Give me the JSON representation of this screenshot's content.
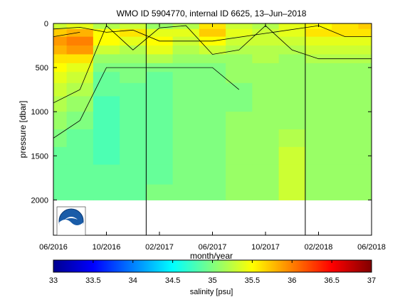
{
  "chart_data": [
    {
      "type": "heatmap",
      "title": "WMO ID 5904770, internal ID 6625, 13–Jun–2018",
      "xlabel": "month/year",
      "ylabel": "pressure [dbar]",
      "x_ticks": [
        "06/2016",
        "10/2016",
        "02/2017",
        "06/2017",
        "10/2017",
        "02/2018",
        "06/2018"
      ],
      "xlim": [
        "2016-06",
        "2018-06"
      ],
      "y_ticks": [
        0,
        500,
        1000,
        1500,
        2000
      ],
      "ylim": [
        0,
        2400
      ],
      "y_reversed": true,
      "contour_lines": true,
      "vertical_markers": [
        "2017-01",
        "2018-01"
      ],
      "x": [
        "2016-06",
        "2016-08",
        "2016-10",
        "2016-12",
        "2017-02",
        "2017-04",
        "2017-06",
        "2017-08",
        "2017-10",
        "2017-12",
        "2018-02",
        "2018-04",
        "2018-06"
      ],
      "y": [
        25,
        100,
        200,
        300,
        400,
        500,
        600,
        750,
        900,
        1100,
        1300,
        1500,
        1700,
        1950
      ],
      "z": [
        [
          35.3,
          35.7,
          35.9,
          35.8,
          35.6,
          35.5,
          35.4,
          35.3,
          35.2,
          35.1,
          35.0,
          34.9,
          34.9,
          34.9
        ],
        [
          35.4,
          35.8,
          36.0,
          35.9,
          35.6,
          35.4,
          35.3,
          35.2,
          35.1,
          35.0,
          34.9,
          34.9,
          34.9,
          34.9
        ],
        [
          35.2,
          35.5,
          35.5,
          35.3,
          35.1,
          35.0,
          34.9,
          34.9,
          34.8,
          34.8,
          34.8,
          34.8,
          34.9,
          34.9
        ],
        [
          35.3,
          35.6,
          35.4,
          35.2,
          35.1,
          35.0,
          35.0,
          34.9,
          34.9,
          34.9,
          34.9,
          34.9,
          34.9,
          34.9
        ],
        [
          35.1,
          35.4,
          35.5,
          35.4,
          35.2,
          35.0,
          34.9,
          34.9,
          34.9,
          34.9,
          34.9,
          34.9,
          34.9,
          35.0
        ],
        [
          35.2,
          35.4,
          35.3,
          35.2,
          35.1,
          35.0,
          35.0,
          35.0,
          35.0,
          35.0,
          35.0,
          35.0,
          35.0,
          35.0
        ],
        [
          35.6,
          35.7,
          35.5,
          35.3,
          35.1,
          35.0,
          35.0,
          35.0,
          35.0,
          35.0,
          35.0,
          35.0,
          35.0,
          35.0
        ],
        [
          35.3,
          35.4,
          35.3,
          35.2,
          35.1,
          35.1,
          35.1,
          35.0,
          35.0,
          35.1,
          35.1,
          35.1,
          35.1,
          35.1
        ],
        [
          35.2,
          35.3,
          35.3,
          35.2,
          35.2,
          35.1,
          35.1,
          35.1,
          35.1,
          35.1,
          35.1,
          35.1,
          35.1,
          35.1
        ],
        [
          35.4,
          35.4,
          35.3,
          35.2,
          35.1,
          35.1,
          35.1,
          35.1,
          35.1,
          35.1,
          35.2,
          35.3,
          35.3,
          35.3
        ],
        [
          35.5,
          35.6,
          35.4,
          35.3,
          35.2,
          35.1,
          35.1,
          35.1,
          35.1,
          35.1,
          35.1,
          35.1,
          35.1,
          35.1
        ],
        [
          35.6,
          35.6,
          35.4,
          35.3,
          35.2,
          35.1,
          35.1,
          35.1,
          35.1,
          35.1,
          35.1,
          35.1,
          35.1,
          35.1
        ],
        [
          35.7,
          35.6,
          35.4,
          35.3,
          35.2,
          35.1,
          35.1,
          35.1,
          35.1,
          35.1,
          35.1,
          35.1,
          35.1,
          35.1
        ]
      ]
    },
    {
      "type": "colorbar",
      "label": "salinity [psu]",
      "range": [
        33,
        37
      ],
      "ticks": [
        "33",
        "33.5",
        "34",
        "34.5",
        "35",
        "35.5",
        "36",
        "36.5",
        "37"
      ],
      "colormap": "jet"
    }
  ]
}
